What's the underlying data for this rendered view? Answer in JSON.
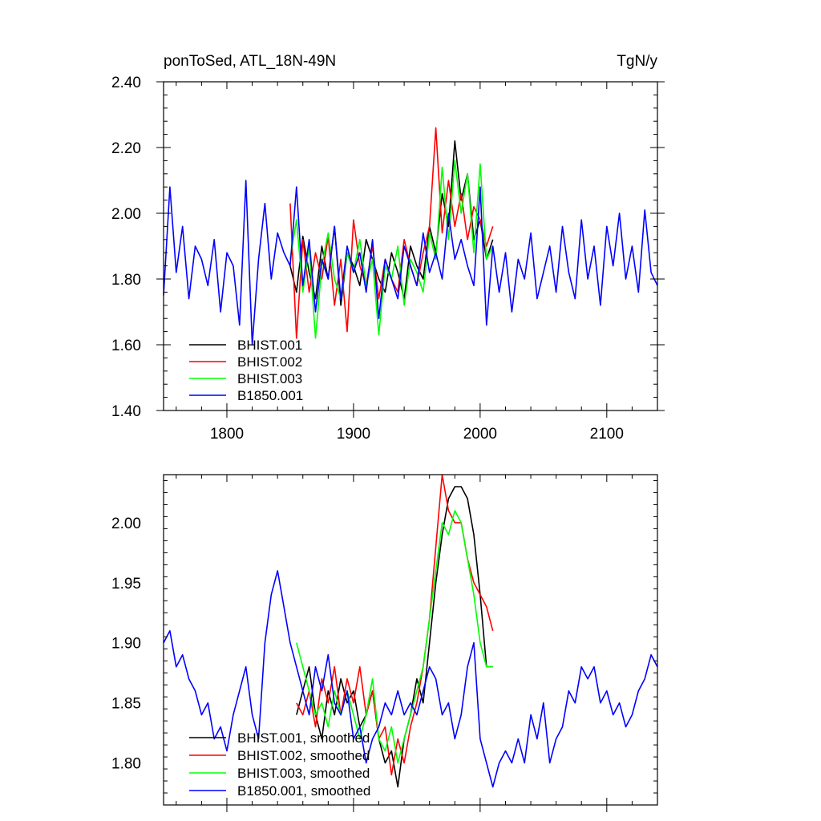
{
  "chart_data": [
    {
      "type": "line",
      "title_left": "ponToSed, ATL_18N-49N",
      "title_right": "TgN/y",
      "xlim": [
        1750,
        2140
      ],
      "ylim": [
        1.4,
        2.4
      ],
      "x_ticks": [
        1800,
        1900,
        2000,
        2100
      ],
      "x_tick_labels": [
        "1800",
        "1900",
        "2000",
        "2100"
      ],
      "y_ticks": [
        1.4,
        1.6,
        1.8,
        2.0,
        2.2,
        2.4
      ],
      "y_tick_labels": [
        "1.40",
        "1.60",
        "1.80",
        "2.00",
        "2.20",
        "2.40"
      ],
      "legend_position": "bottom-left",
      "grid": false,
      "series": [
        {
          "name": "BHIST.001",
          "color": "#000000",
          "x": [
            1850,
            1855,
            1860,
            1865,
            1870,
            1875,
            1880,
            1885,
            1890,
            1895,
            1900,
            1905,
            1910,
            1915,
            1920,
            1925,
            1930,
            1935,
            1940,
            1945,
            1950,
            1955,
            1960,
            1965,
            1970,
            1975,
            1980,
            1985,
            1990,
            1995,
            2000,
            2005,
            2010
          ],
          "y": [
            1.84,
            1.76,
            1.93,
            1.82,
            1.74,
            1.9,
            1.8,
            1.96,
            1.72,
            1.88,
            1.84,
            1.78,
            1.92,
            1.86,
            1.8,
            1.76,
            1.88,
            1.82,
            1.74,
            1.9,
            1.84,
            1.8,
            1.96,
            1.88,
            2.06,
            1.96,
            2.22,
            2.04,
            2.12,
            1.92,
            1.98,
            1.86,
            1.92
          ]
        },
        {
          "name": "BHIST.002",
          "color": "#ff0000",
          "x": [
            1850,
            1855,
            1860,
            1865,
            1870,
            1875,
            1880,
            1885,
            1890,
            1895,
            1900,
            1905,
            1910,
            1915,
            1920,
            1925,
            1930,
            1935,
            1940,
            1945,
            1950,
            1955,
            1960,
            1965,
            1970,
            1975,
            1980,
            1985,
            1990,
            1995,
            2000,
            2005,
            2010
          ],
          "y": [
            2.03,
            1.62,
            1.92,
            1.76,
            1.88,
            1.8,
            1.93,
            1.72,
            1.86,
            1.64,
            1.98,
            1.84,
            1.78,
            1.9,
            1.74,
            1.86,
            1.8,
            1.76,
            1.92,
            1.84,
            1.78,
            1.88,
            1.96,
            2.26,
            1.94,
            2.1,
            1.96,
            2.06,
            1.92,
            2.02,
            1.98,
            1.9,
            1.96
          ]
        },
        {
          "name": "BHIST.003",
          "color": "#00ff00",
          "x": [
            1850,
            1855,
            1860,
            1865,
            1870,
            1875,
            1880,
            1885,
            1890,
            1895,
            1900,
            1905,
            1910,
            1915,
            1920,
            1925,
            1930,
            1935,
            1940,
            1945,
            1950,
            1955,
            1960,
            1965,
            1970,
            1975,
            1980,
            1985,
            1990,
            1995,
            2000,
            2005,
            2010
          ],
          "y": [
            1.86,
            1.98,
            1.76,
            1.9,
            1.62,
            1.84,
            1.94,
            1.8,
            1.74,
            1.88,
            1.82,
            1.92,
            1.78,
            1.86,
            1.63,
            1.84,
            1.8,
            1.9,
            1.72,
            1.86,
            1.82,
            1.76,
            1.94,
            1.86,
            2.14,
            1.92,
            2.16,
            2.0,
            2.12,
            1.88,
            2.15,
            1.86,
            1.9
          ]
        },
        {
          "name": "B1850.001",
          "color": "#0000ff",
          "x": [
            1750,
            1755,
            1760,
            1765,
            1770,
            1775,
            1780,
            1785,
            1790,
            1795,
            1800,
            1805,
            1810,
            1815,
            1820,
            1825,
            1830,
            1835,
            1840,
            1845,
            1850,
            1855,
            1860,
            1865,
            1870,
            1875,
            1880,
            1885,
            1890,
            1895,
            1900,
            1905,
            1910,
            1915,
            1920,
            1925,
            1930,
            1935,
            1940,
            1945,
            1950,
            1955,
            1960,
            1965,
            1970,
            1975,
            1980,
            1985,
            1990,
            1995,
            2000,
            2005,
            2010,
            2015,
            2020,
            2025,
            2030,
            2035,
            2040,
            2045,
            2050,
            2055,
            2060,
            2065,
            2070,
            2075,
            2080,
            2085,
            2090,
            2095,
            2100,
            2105,
            2110,
            2115,
            2120,
            2125,
            2130,
            2135,
            2140
          ],
          "y": [
            1.75,
            2.08,
            1.82,
            1.96,
            1.74,
            1.9,
            1.86,
            1.78,
            1.92,
            1.7,
            1.88,
            1.84,
            1.66,
            2.1,
            1.6,
            1.86,
            2.03,
            1.8,
            1.94,
            1.88,
            1.84,
            2.08,
            1.78,
            1.92,
            1.7,
            1.86,
            1.8,
            1.96,
            1.74,
            1.9,
            1.82,
            1.88,
            1.76,
            1.92,
            1.68,
            1.86,
            1.8,
            1.74,
            1.9,
            1.84,
            1.78,
            1.94,
            1.82,
            1.88,
            1.8,
            2.0,
            1.86,
            1.92,
            1.84,
            1.78,
            2.08,
            1.66,
            1.9,
            1.76,
            1.88,
            1.7,
            1.86,
            1.8,
            1.94,
            1.74,
            1.82,
            1.9,
            1.76,
            1.96,
            1.82,
            1.74,
            1.98,
            1.8,
            1.9,
            1.72,
            1.96,
            1.84,
            2.0,
            1.8,
            1.9,
            1.76,
            2.01,
            1.82,
            1.78
          ]
        }
      ]
    },
    {
      "type": "line",
      "xlim": [
        1750,
        2140
      ],
      "ylim": [
        1.765,
        2.04
      ],
      "x_ticks": [
        1800,
        1900,
        2000,
        2100
      ],
      "y_ticks": [
        1.8,
        1.85,
        1.9,
        1.95,
        2.0
      ],
      "y_tick_labels": [
        "1.80",
        "1.85",
        "1.90",
        "1.95",
        "2.00"
      ],
      "legend_position": "bottom-left",
      "grid": false,
      "series": [
        {
          "name": "BHIST.001, smoothed",
          "color": "#000000",
          "x": [
            1855,
            1860,
            1865,
            1870,
            1875,
            1880,
            1885,
            1890,
            1895,
            1900,
            1905,
            1910,
            1915,
            1920,
            1925,
            1930,
            1935,
            1940,
            1945,
            1950,
            1955,
            1960,
            1965,
            1970,
            1975,
            1980,
            1985,
            1990,
            1995,
            2000,
            2005,
            2010
          ],
          "y": [
            1.84,
            1.86,
            1.88,
            1.84,
            1.82,
            1.86,
            1.84,
            1.87,
            1.85,
            1.86,
            1.83,
            1.84,
            1.86,
            1.82,
            1.8,
            1.81,
            1.78,
            1.82,
            1.84,
            1.87,
            1.85,
            1.9,
            1.95,
            1.99,
            2.02,
            2.03,
            2.03,
            2.02,
            1.99,
            1.94,
            1.88,
            1.88
          ]
        },
        {
          "name": "BHIST.002, smoothed",
          "color": "#ff0000",
          "x": [
            1855,
            1860,
            1865,
            1870,
            1875,
            1880,
            1885,
            1890,
            1895,
            1900,
            1905,
            1910,
            1915,
            1920,
            1925,
            1930,
            1935,
            1940,
            1945,
            1950,
            1955,
            1960,
            1965,
            1970,
            1975,
            1980,
            1985,
            1990,
            1995,
            2000,
            2005,
            2010
          ],
          "y": [
            1.85,
            1.84,
            1.86,
            1.83,
            1.87,
            1.85,
            1.88,
            1.84,
            1.87,
            1.85,
            1.88,
            1.84,
            1.86,
            1.82,
            1.83,
            1.79,
            1.82,
            1.8,
            1.83,
            1.85,
            1.88,
            1.92,
            1.98,
            2.04,
            2.01,
            2.0,
            2.0,
            1.97,
            1.95,
            1.94,
            1.93,
            1.91
          ]
        },
        {
          "name": "BHIST.003, smoothed",
          "color": "#00ff00",
          "x": [
            1855,
            1860,
            1865,
            1870,
            1875,
            1880,
            1885,
            1890,
            1895,
            1900,
            1905,
            1910,
            1915,
            1920,
            1925,
            1930,
            1935,
            1940,
            1945,
            1950,
            1955,
            1960,
            1965,
            1970,
            1975,
            1980,
            1985,
            1990,
            1995,
            2000,
            2005,
            2010
          ],
          "y": [
            1.9,
            1.88,
            1.86,
            1.84,
            1.85,
            1.83,
            1.86,
            1.84,
            1.86,
            1.84,
            1.82,
            1.84,
            1.87,
            1.82,
            1.81,
            1.83,
            1.8,
            1.82,
            1.84,
            1.86,
            1.88,
            1.92,
            1.96,
            2.0,
            1.99,
            2.01,
            2.0,
            1.97,
            1.94,
            1.9,
            1.88,
            1.88
          ]
        },
        {
          "name": "B1850.001, smoothed",
          "color": "#0000ff",
          "x": [
            1750,
            1755,
            1760,
            1765,
            1770,
            1775,
            1780,
            1785,
            1790,
            1795,
            1800,
            1805,
            1810,
            1815,
            1820,
            1825,
            1830,
            1835,
            1840,
            1845,
            1850,
            1855,
            1860,
            1865,
            1870,
            1875,
            1880,
            1885,
            1890,
            1895,
            1900,
            1905,
            1910,
            1915,
            1920,
            1925,
            1930,
            1935,
            1940,
            1945,
            1950,
            1955,
            1960,
            1965,
            1970,
            1975,
            1980,
            1985,
            1990,
            1995,
            2000,
            2005,
            2010,
            2015,
            2020,
            2025,
            2030,
            2035,
            2040,
            2045,
            2050,
            2055,
            2060,
            2065,
            2070,
            2075,
            2080,
            2085,
            2090,
            2095,
            2100,
            2105,
            2110,
            2115,
            2120,
            2125,
            2130,
            2135,
            2140
          ],
          "y": [
            1.9,
            1.91,
            1.88,
            1.89,
            1.87,
            1.86,
            1.84,
            1.85,
            1.82,
            1.83,
            1.81,
            1.84,
            1.86,
            1.88,
            1.84,
            1.82,
            1.9,
            1.94,
            1.96,
            1.93,
            1.9,
            1.88,
            1.86,
            1.84,
            1.88,
            1.86,
            1.89,
            1.85,
            1.84,
            1.86,
            1.82,
            1.83,
            1.8,
            1.82,
            1.83,
            1.85,
            1.84,
            1.86,
            1.84,
            1.85,
            1.84,
            1.86,
            1.88,
            1.87,
            1.84,
            1.85,
            1.82,
            1.84,
            1.88,
            1.9,
            1.82,
            1.8,
            1.78,
            1.8,
            1.81,
            1.8,
            1.82,
            1.8,
            1.84,
            1.82,
            1.85,
            1.8,
            1.82,
            1.83,
            1.86,
            1.85,
            1.88,
            1.87,
            1.88,
            1.85,
            1.86,
            1.84,
            1.85,
            1.83,
            1.84,
            1.86,
            1.87,
            1.89,
            1.88
          ]
        }
      ]
    }
  ]
}
